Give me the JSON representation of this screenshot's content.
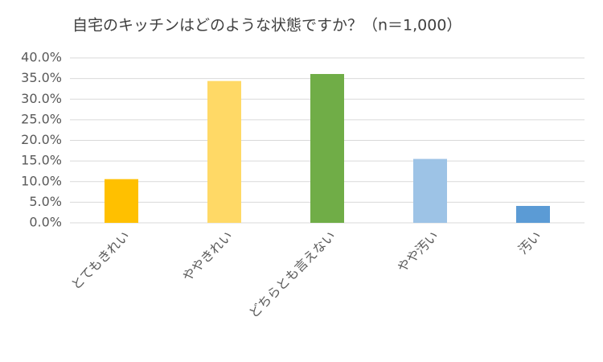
{
  "chart_data": {
    "type": "bar",
    "title": "自宅のキッチンはどのような状態ですか？（n＝1,000）",
    "categories": [
      "とてもきれい",
      "ややきれい",
      "どちらとも言えない",
      "やや汚い",
      "汚い"
    ],
    "values": [
      10.6,
      34.4,
      36.1,
      15.5,
      4.1
    ],
    "colors": [
      "#ffc000",
      "#ffd966",
      "#70ad47",
      "#9dc3e6",
      "#5b9bd5"
    ],
    "ylim": [
      0,
      40
    ],
    "yticks": [
      {
        "value": 0,
        "label": "0.0%"
      },
      {
        "value": 5,
        "label": "5.0%"
      },
      {
        "value": 10,
        "label": "10.0%"
      },
      {
        "value": 15,
        "label": "15.0%"
      },
      {
        "value": 20,
        "label": "20.0%"
      },
      {
        "value": 25,
        "label": "25.0%"
      },
      {
        "value": 30,
        "label": "30.0%"
      },
      {
        "value": 35,
        "label": "35.0%"
      },
      {
        "value": 40,
        "label": "40.0%"
      }
    ],
    "grid": true
  }
}
